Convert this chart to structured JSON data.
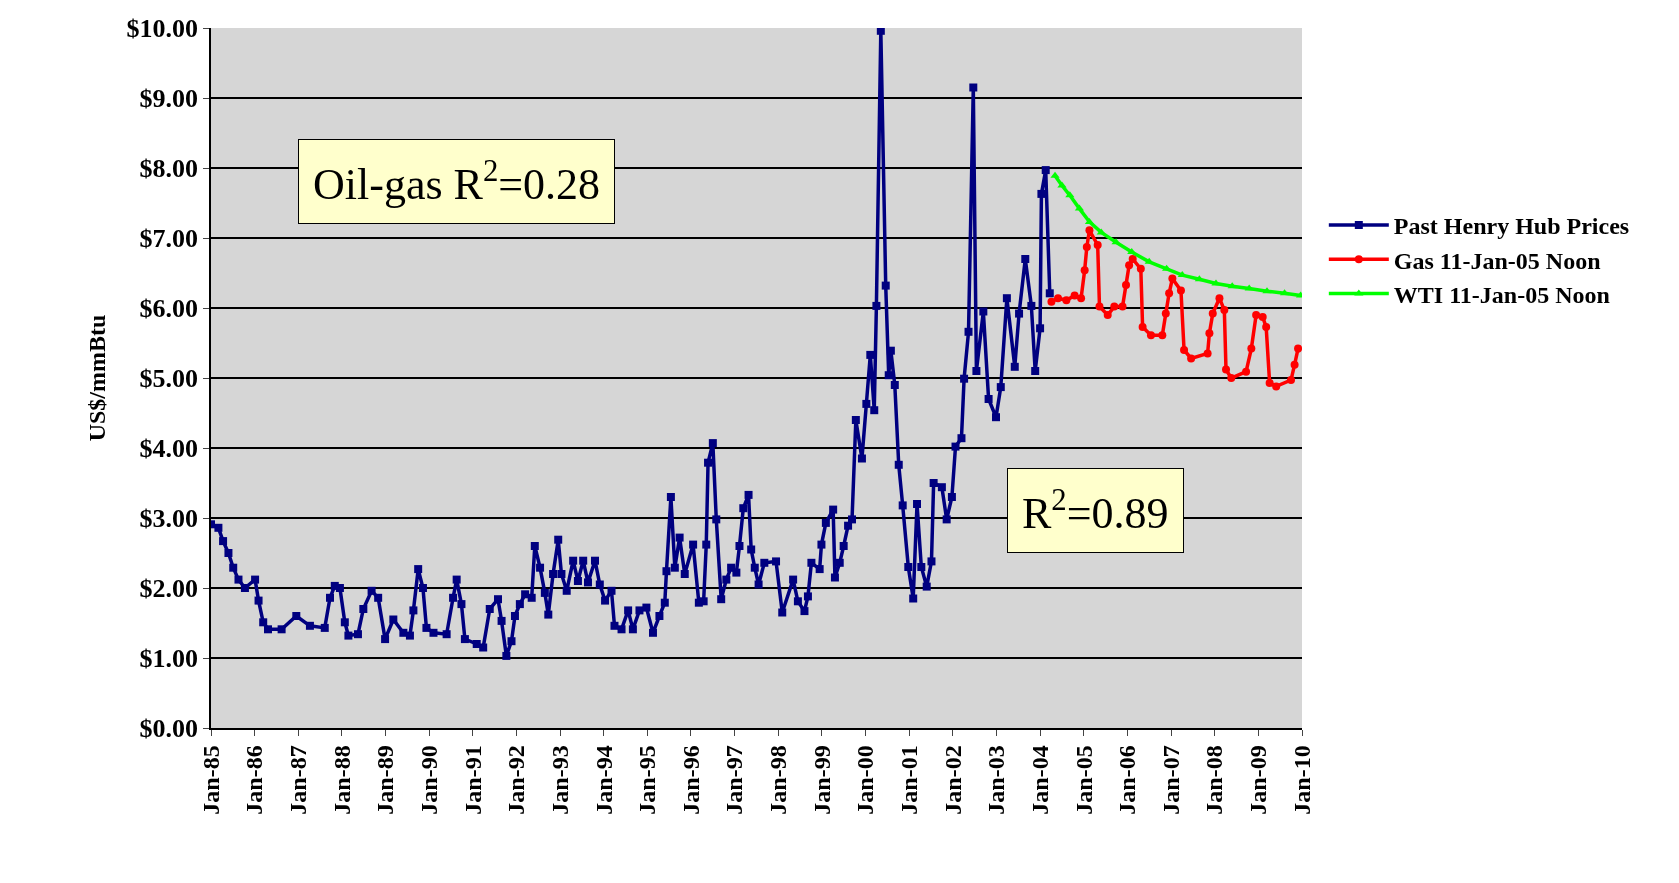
{
  "chart_data": {
    "type": "line",
    "ylabel": "US$/mmBtu",
    "annotations": [
      "Oil-gas R$^{2}$=0.28",
      "R$^{2}$=0.89"
    ],
    "xlim": [
      "1985-01-01",
      "2010-01-01"
    ],
    "xticks": [
      {
        "value": "1985-01-01",
        "label": "Jan-85"
      },
      {
        "value": "1986-01-01",
        "label": "Jan-86"
      },
      {
        "value": "1987-01-01",
        "label": "Jan-87"
      },
      {
        "value": "1988-01-01",
        "label": "Jan-88"
      },
      {
        "value": "1989-01-01",
        "label": "Jan-89"
      },
      {
        "value": "1990-01-01",
        "label": "Jan-90"
      },
      {
        "value": "1991-01-01",
        "label": "Jan-91"
      },
      {
        "value": "1992-01-01",
        "label": "Jan-92"
      },
      {
        "value": "1993-01-01",
        "label": "Jan-93"
      },
      {
        "value": "1994-01-01",
        "label": "Jan-94"
      },
      {
        "value": "1995-01-01",
        "label": "Jan-95"
      },
      {
        "value": "1996-01-01",
        "label": "Jan-96"
      },
      {
        "value": "1997-01-01",
        "label": "Jan-97"
      },
      {
        "value": "1998-01-01",
        "label": "Jan-98"
      },
      {
        "value": "1999-01-01",
        "label": "Jan-99"
      },
      {
        "value": "2000-01-01",
        "label": "Jan-00"
      },
      {
        "value": "2001-01-01",
        "label": "Jan-01"
      },
      {
        "value": "2002-01-01",
        "label": "Jan-02"
      },
      {
        "value": "2003-01-01",
        "label": "Jan-03"
      },
      {
        "value": "2004-01-01",
        "label": "Jan-04"
      },
      {
        "value": "2005-01-01",
        "label": "Jan-05"
      },
      {
        "value": "2006-01-01",
        "label": "Jan-06"
      },
      {
        "value": "2007-01-01",
        "label": "Jan-07"
      },
      {
        "value": "2008-01-01",
        "label": "Jan-08"
      },
      {
        "value": "2009-01-01",
        "label": "Jan-09"
      },
      {
        "value": "2010-01-01",
        "label": "Jan-10"
      }
    ],
    "ylim": [
      0,
      10
    ],
    "yticks": [
      {
        "value": 0,
        "label": "$0.00"
      },
      {
        "value": 1,
        "label": "$1.00"
      },
      {
        "value": 2,
        "label": "$2.00"
      },
      {
        "value": 3,
        "label": "$3.00"
      },
      {
        "value": 4,
        "label": "$4.00"
      },
      {
        "value": 5,
        "label": "$5.00"
      },
      {
        "value": 6,
        "label": "$6.00"
      },
      {
        "value": 7,
        "label": "$7.00"
      },
      {
        "value": 8,
        "label": "$8.00"
      },
      {
        "value": 9,
        "label": "$9.00"
      },
      {
        "value": 10,
        "label": "$10.00"
      }
    ],
    "grid": "y",
    "legend": "right",
    "line_style": "solid",
    "series": [
      {
        "name": "Past Henry Hub Prices",
        "color": "#000080",
        "marker": "square",
        "x": [
          "1985-01-01",
          "1985-03-04",
          "1985-04-12",
          "1985-05-27",
          "1985-07-06",
          "1985-08-19",
          "1985-10-12",
          "1986-01-05",
          "1986-02-03",
          "1986-03-14",
          "1986-04-23",
          "1986-08-15",
          "1986-12-16",
          "1987-04-09",
          "1987-08-11",
          "1987-09-24",
          "1987-11-03",
          "1987-12-16",
          "1988-01-26",
          "1988-02-25",
          "1988-05-15",
          "1988-06-29",
          "1988-09-06",
          "1988-10-31",
          "1988-12-28",
          "1989-03-07",
          "1989-05-30",
          "1989-07-24",
          "1989-08-22",
          "1989-10-01",
          "1989-11-10",
          "1989-12-09",
          "1990-02-06",
          "1990-05-27",
          "1990-07-20",
          "1990-08-19",
          "1990-09-28",
          "1990-10-27",
          "1991-02-03",
          "1991-03-29",
          "1991-05-23",
          "1991-07-31",
          "1991-08-30",
          "1991-10-09",
          "1991-11-21",
          "1991-12-20",
          "1992-01-30",
          "1992-03-14",
          "1992-05-08",
          "1992-06-03",
          "1992-07-17",
          "1992-08-26",
          "1992-09-24",
          "1992-11-03",
          "1992-12-16",
          "1993-01-12",
          "1993-02-25",
          "1993-04-20",
          "1993-05-30",
          "1993-07-13",
          "1993-08-22",
          "1993-10-20",
          "1993-11-29",
          "1994-01-12",
          "1994-03-07",
          "1994-04-01",
          "1994-05-30",
          "1994-07-24",
          "1994-09-02",
          "1994-10-27",
          "1994-12-24",
          "1995-02-17",
          "1995-04-12",
          "1995-05-27",
          "1995-06-10",
          "1995-07-17",
          "1995-08-19",
          "1995-09-28",
          "1995-11-10",
          "1996-01-19",
          "1996-03-07",
          "1996-04-16",
          "1996-05-08",
          "1996-05-23",
          "1996-07-02",
          "1996-07-31",
          "1996-09-10",
          "1996-10-23",
          "1996-12-02",
          "1997-01-15",
          "1997-02-10",
          "1997-03-14",
          "1997-04-27",
          "1997-05-19",
          "1997-06-18",
          "1997-07-20",
          "1997-09-06",
          "1997-12-13",
          "1998-02-03",
          "1998-05-05",
          "1998-06-14",
          "1998-08-08",
          "1998-09-06",
          "1998-10-05",
          "1998-12-13",
          "1998-12-28",
          "1999-02-03",
          "1999-04-05",
          "1999-04-20",
          "1999-05-30",
          "1999-07-02",
          "1999-08-08",
          "1999-09-10",
          "1999-10-12",
          "1999-12-02",
          "2000-01-08",
          "2000-02-10",
          "2000-03-14",
          "2000-04-01",
          "2000-05-08",
          "2000-06-18",
          "2000-07-13",
          "2000-07-31",
          "2000-09-02",
          "2000-10-05",
          "2000-11-07",
          "2000-12-24",
          "2001-02-03",
          "2001-03-07",
          "2001-04-12",
          "2001-05-27",
          "2001-07-06",
          "2001-07-24",
          "2001-10-01",
          "2001-11-10",
          "2001-12-24",
          "2002-01-23",
          "2002-03-14",
          "2002-04-05",
          "2002-05-12",
          "2002-06-21",
          "2002-07-17",
          "2002-09-13",
          "2002-10-27",
          "2002-12-28",
          "2003-02-06",
          "2003-03-29",
          "2003-06-03",
          "2003-07-09",
          "2003-08-30",
          "2003-10-20",
          "2003-11-21",
          "2004-01-01",
          "2004-01-12",
          "2004-02-17",
          "2004-03-22"
        ],
        "values": [
          2.91,
          2.86,
          2.67,
          2.5,
          2.29,
          2.12,
          2.0,
          2.12,
          1.82,
          1.51,
          1.41,
          1.41,
          1.6,
          1.46,
          1.43,
          1.86,
          2.03,
          2.0,
          1.51,
          1.32,
          1.34,
          1.7,
          1.96,
          1.86,
          1.27,
          1.55,
          1.36,
          1.32,
          1.68,
          2.27,
          2.0,
          1.43,
          1.36,
          1.34,
          1.86,
          2.12,
          1.77,
          1.27,
          1.2,
          1.15,
          1.7,
          1.84,
          1.53,
          1.03,
          1.24,
          1.6,
          1.77,
          1.91,
          1.86,
          2.6,
          2.29,
          1.93,
          1.62,
          2.2,
          2.69,
          2.2,
          1.96,
          2.39,
          2.1,
          2.39,
          2.08,
          2.39,
          2.05,
          1.82,
          1.96,
          1.46,
          1.41,
          1.68,
          1.41,
          1.68,
          1.72,
          1.36,
          1.6,
          1.79,
          2.24,
          3.3,
          2.29,
          2.72,
          2.2,
          2.62,
          1.79,
          1.81,
          2.62,
          3.79,
          4.07,
          2.98,
          1.84,
          2.12,
          2.29,
          2.22,
          2.6,
          3.14,
          3.33,
          2.55,
          2.29,
          2.05,
          2.36,
          2.38,
          1.65,
          2.12,
          1.81,
          1.67,
          1.88,
          2.36,
          2.27,
          2.62,
          2.93,
          3.12,
          2.15,
          2.36,
          2.6,
          2.89,
          2.98,
          4.4,
          3.85,
          4.63,
          5.33,
          4.54,
          6.03,
          9.96,
          6.32,
          5.04,
          5.39,
          4.9,
          3.76,
          3.18,
          2.3,
          1.85,
          3.2,
          2.3,
          2.02,
          2.38,
          3.5,
          3.44,
          2.98,
          3.3,
          4.02,
          4.14,
          4.99,
          5.66,
          9.15,
          5.1,
          5.95,
          4.7,
          4.44,
          4.87,
          6.14,
          5.16,
          5.92,
          6.7,
          6.03,
          5.1,
          5.71,
          7.63,
          7.97,
          6.21
        ]
      },
      {
        "name": "Gas 11-Jan-05 Noon",
        "color": "#ff0000",
        "marker": "circle",
        "x": [
          "2004-04-05",
          "2004-05-30",
          "2004-08-08",
          "2004-10-16",
          "2004-12-09",
          "2005-01-08",
          "2005-01-26",
          "2005-02-17",
          "2005-04-27",
          "2005-05-12",
          "2005-07-20",
          "2005-09-13",
          "2005-11-21",
          "2005-12-20",
          "2006-01-15",
          "2006-02-14",
          "2006-04-23",
          "2006-05-08",
          "2006-07-17",
          "2006-10-20",
          "2006-11-18",
          "2006-12-16",
          "2007-01-12",
          "2007-03-25",
          "2007-04-20",
          "2007-06-18",
          "2007-11-03",
          "2007-11-18",
          "2007-12-16",
          "2008-02-10",
          "2008-03-22",
          "2008-04-05",
          "2008-05-19",
          "2008-09-20",
          "2008-11-03",
          "2008-12-13",
          "2009-02-06",
          "2009-03-07",
          "2009-04-05",
          "2009-05-30",
          "2009-10-01",
          "2009-10-31",
          "2009-11-29"
        ],
        "values": [
          6.09,
          6.14,
          6.11,
          6.18,
          6.14,
          6.54,
          6.87,
          7.11,
          6.9,
          6.02,
          5.9,
          6.02,
          6.02,
          6.33,
          6.61,
          6.7,
          6.56,
          5.73,
          5.61,
          5.61,
          5.92,
          6.21,
          6.42,
          6.25,
          5.4,
          5.28,
          5.35,
          5.64,
          5.92,
          6.14,
          5.97,
          5.12,
          5.0,
          5.09,
          5.42,
          5.9,
          5.87,
          5.73,
          4.93,
          4.88,
          4.97,
          5.19,
          5.42
        ]
      },
      {
        "name": "WTI 11-Jan-05 Noon",
        "color": "#00ff00",
        "marker": "triangle",
        "x": [
          "2004-05-05",
          "2004-07-02",
          "2004-09-06",
          "2004-11-25",
          "2005-02-17",
          "2005-05-27",
          "2005-09-28",
          "2006-02-06",
          "2006-07-02",
          "2006-11-25",
          "2007-04-05",
          "2007-08-26",
          "2008-01-12",
          "2008-05-27",
          "2008-10-16",
          "2009-03-14",
          "2009-08-08",
          "2009-12-20"
        ],
        "values": [
          7.89,
          7.75,
          7.61,
          7.42,
          7.23,
          7.08,
          6.94,
          6.8,
          6.66,
          6.56,
          6.47,
          6.41,
          6.35,
          6.31,
          6.28,
          6.24,
          6.21,
          6.18
        ]
      }
    ]
  }
}
